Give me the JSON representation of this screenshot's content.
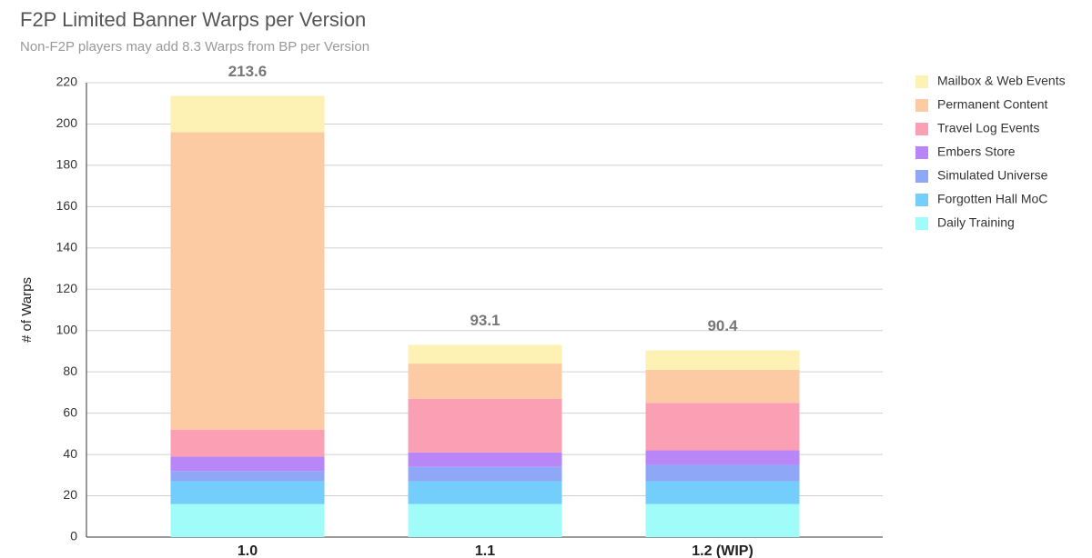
{
  "chart_data": {
    "type": "stacked-bar",
    "title": "F2P Limited Banner Warps per Version",
    "subtitle": "Non-F2P players may add 8.3 Warps from BP per Version",
    "y_label": "# of Warps",
    "categories": [
      "1.0",
      "1.1",
      "1.2 (WIP)"
    ],
    "totals": [
      213.6,
      93.1,
      90.4
    ],
    "series": [
      {
        "name": "Daily Training",
        "color": "#a0fcf9",
        "values": [
          16,
          16,
          16
        ]
      },
      {
        "name": "Forgotten Hall MoC",
        "color": "#73cefb",
        "values": [
          11,
          11,
          11
        ]
      },
      {
        "name": "Simulated Universe",
        "color": "#8fa7f7",
        "values": [
          5,
          7,
          8
        ]
      },
      {
        "name": "Embers Store",
        "color": "#b886f7",
        "values": [
          7,
          7,
          7
        ]
      },
      {
        "name": "Travel Log Events",
        "color": "#fb9fb5",
        "values": [
          13,
          26,
          23
        ]
      },
      {
        "name": "Permanent Content",
        "color": "#fccba4",
        "values": [
          144,
          17,
          16
        ]
      },
      {
        "name": "Mailbox & Web Events",
        "color": "#fdf2b3",
        "values": [
          17.6,
          9.1,
          9.4
        ]
      }
    ],
    "ylim": [
      0,
      220
    ],
    "yticks": [
      0,
      20,
      40,
      60,
      80,
      100,
      120,
      140,
      160,
      180,
      200,
      220
    ],
    "grid": true
  }
}
